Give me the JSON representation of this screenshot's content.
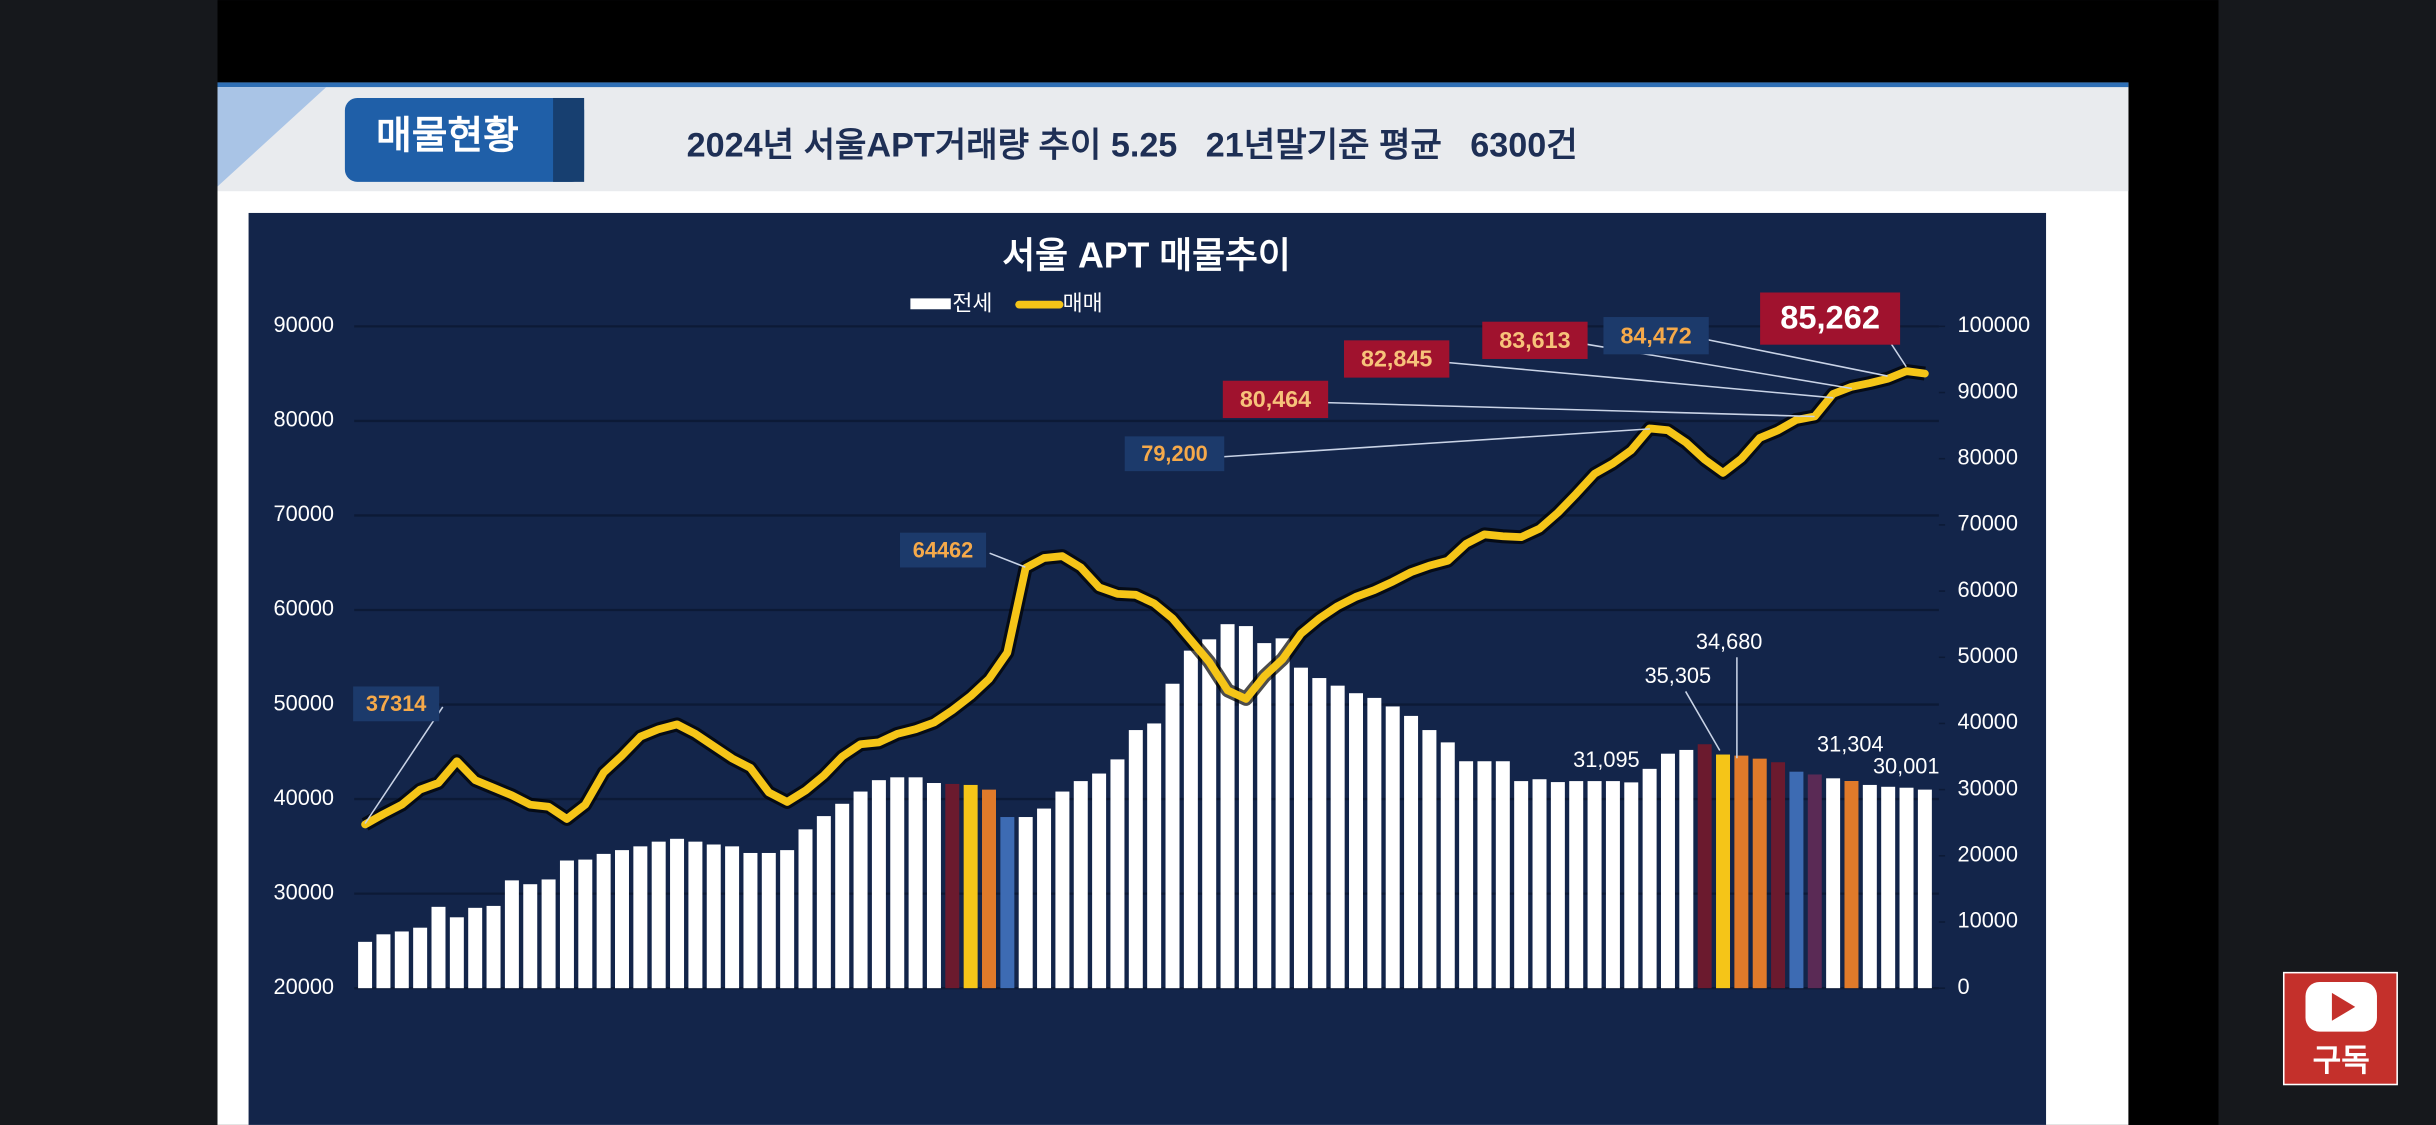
{
  "header": {
    "badge": "매물현황",
    "title": "2024년 서울APT거래량 추이 5.25   21년말기준 평균   6300건"
  },
  "subscribe_label": "구독",
  "chart_data": {
    "type": "bar-line",
    "title": "서울 APT 매물추이",
    "categories": [
      null,
      null,
      null,
      null,
      null,
      null,
      null,
      null,
      null,
      null,
      null,
      null,
      null,
      null,
      null,
      null,
      null,
      null,
      null,
      null,
      null,
      null,
      null,
      null,
      null,
      null,
      null,
      null,
      null,
      null,
      null,
      null,
      null,
      null,
      null,
      null,
      null,
      null,
      null,
      null,
      null,
      null,
      null,
      null,
      null,
      null,
      null,
      null,
      null,
      null,
      null,
      null,
      null,
      null,
      null,
      null,
      null,
      null,
      null,
      null,
      null,
      null,
      null,
      null,
      null,
      null,
      null,
      null,
      null,
      null,
      null,
      null,
      null,
      null,
      null,
      null,
      null,
      null,
      null,
      null,
      null,
      null,
      null,
      null,
      null,
      null
    ],
    "series": [
      {
        "name": "전세",
        "type": "bar",
        "axis": "y2",
        "color": "#ffffff",
        "colors": [
          "#ffffff",
          "#ffffff",
          "#ffffff",
          "#ffffff",
          "#ffffff",
          "#ffffff",
          "#ffffff",
          "#ffffff",
          "#ffffff",
          "#ffffff",
          "#ffffff",
          "#ffffff",
          "#ffffff",
          "#ffffff",
          "#ffffff",
          "#ffffff",
          "#ffffff",
          "#ffffff",
          "#ffffff",
          "#ffffff",
          "#ffffff",
          "#ffffff",
          "#ffffff",
          "#ffffff",
          "#ffffff",
          "#ffffff",
          "#ffffff",
          "#ffffff",
          "#ffffff",
          "#ffffff",
          "#ffffff",
          "#ffffff",
          "#6b1a2e",
          "#f5c518",
          "#e07a2a",
          "#3d6bb3",
          "#ffffff",
          "#ffffff",
          "#ffffff",
          "#ffffff",
          "#ffffff",
          "#ffffff",
          "#ffffff",
          "#ffffff",
          "#ffffff",
          "#ffffff",
          "#ffffff",
          "#ffffff",
          "#ffffff",
          "#ffffff",
          "#ffffff",
          "#ffffff",
          "#ffffff",
          "#ffffff",
          "#ffffff",
          "#ffffff",
          "#ffffff",
          "#ffffff",
          "#ffffff",
          "#ffffff",
          "#ffffff",
          "#ffffff",
          "#ffffff",
          "#ffffff",
          "#ffffff",
          "#ffffff",
          "#ffffff",
          "#ffffff",
          "#ffffff",
          "#ffffff",
          "#ffffff",
          "#ffffff",
          "#ffffff",
          "#6b1a2e",
          "#f5c518",
          "#e07a2a",
          "#e07a2a",
          "#6b1a2e",
          "#3d6bb3",
          "#5a2a55",
          "#ffffff",
          "#e07a2a",
          "#ffffff",
          "#ffffff",
          "#ffffff",
          "#ffffff"
        ],
        "values": [
          7000,
          8140,
          8570,
          9140,
          12290,
          10710,
          12140,
          12430,
          16290,
          15710,
          16430,
          19290,
          19430,
          20290,
          20860,
          21430,
          22140,
          22570,
          22140,
          21710,
          21430,
          20430,
          20430,
          20860,
          24000,
          26000,
          27860,
          29710,
          31430,
          31860,
          31860,
          31000,
          30860,
          30710,
          30000,
          25860,
          25860,
          27140,
          29710,
          31290,
          32430,
          34570,
          39000,
          40000,
          46000,
          51000,
          52710,
          55000,
          54710,
          52140,
          52860,
          48430,
          46860,
          45710,
          44570,
          43860,
          42570,
          41140,
          39000,
          37140,
          34290,
          34290,
          34290,
          31290,
          31570,
          31140,
          31290,
          31290,
          31290,
          31095,
          33140,
          35430,
          36000,
          36860,
          35305,
          35140,
          34680,
          34140,
          32710,
          32290,
          31710,
          31304,
          30710,
          30430,
          30290,
          30001
        ]
      },
      {
        "name": "매매",
        "type": "line",
        "axis": "y",
        "color": "#f5c518",
        "values": [
          37314,
          38400,
          39400,
          41000,
          41700,
          44000,
          42000,
          41200,
          40400,
          39400,
          39200,
          37900,
          39400,
          42800,
          44600,
          46600,
          47400,
          47900,
          46900,
          45600,
          44300,
          43300,
          40700,
          39700,
          40900,
          42500,
          44500,
          45800,
          46000,
          46900,
          47400,
          48100,
          49400,
          50900,
          52700,
          55500,
          64462,
          65500,
          65700,
          64500,
          62400,
          61700,
          61600,
          60700,
          59100,
          56800,
          54500,
          51500,
          50600,
          53000,
          54800,
          57500,
          59100,
          60400,
          61400,
          62100,
          63000,
          64000,
          64700,
          65200,
          67000,
          68000,
          67800,
          67700,
          68600,
          70300,
          72300,
          74400,
          75500,
          76900,
          79200,
          79000,
          77700,
          75900,
          74500,
          76000,
          78200,
          79000,
          80100,
          80464,
          82845,
          83613,
          84000,
          84472,
          85262,
          85000
        ]
      }
    ],
    "ylim": [
      20000,
      90000
    ],
    "yticks": [
      20000,
      30000,
      40000,
      50000,
      60000,
      70000,
      80000,
      90000
    ],
    "y2lim": [
      0,
      100000
    ],
    "y2ticks": [
      0,
      10000,
      20000,
      30000,
      40000,
      50000,
      60000,
      70000,
      80000,
      90000,
      100000
    ],
    "grid": true,
    "annotations": [
      "37314",
      "64462",
      "79,200",
      "80,464",
      "82,845",
      "83,613",
      "84,472",
      "85,262",
      "31,095",
      "35,305",
      "34,680",
      "31,304",
      "30,001"
    ]
  }
}
